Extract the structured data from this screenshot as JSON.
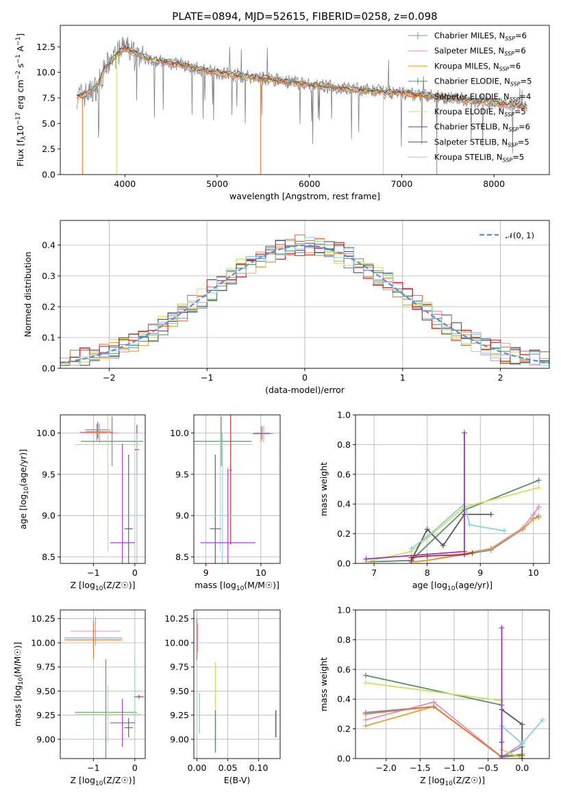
{
  "figure": {
    "title": "PLATE=0894, MJD=52615, FIBERID=0258, z=0.098"
  },
  "models": [
    {
      "name": "Chabrier MILES, N",
      "n": "6",
      "color": "#6f8fc9"
    },
    {
      "name": "Salpeter MILES, N",
      "n": "6",
      "color": "#e78ac3"
    },
    {
      "name": "Kroupa MILES, N",
      "n": "6",
      "color": "#e0a030"
    },
    {
      "name": "Chabrier ELODIE, N",
      "n": "5",
      "color": "#5b8f6b"
    },
    {
      "name": "Salpeter ELODIE, N",
      "n": "4",
      "color": "#e8722a"
    },
    {
      "name": "Kroupa ELODIE, N",
      "n": "5",
      "color": "#cbe25a"
    },
    {
      "name": "Chabrier STELIB, N",
      "n": "6",
      "color": "#555555"
    },
    {
      "name": "Salpeter STELIB, N",
      "n": "5",
      "color": "#c42121"
    },
    {
      "name": "Kroupa STELIB, N",
      "n": "5",
      "color": "#86d2d8"
    }
  ],
  "chart_data": [
    {
      "type": "line",
      "id": "spectrum",
      "title": "PLATE=0894, MJD=52615, FIBERID=0258, z=0.098",
      "xlabel": "wavelength [Angstrom, rest frame]",
      "ylabel_parts": [
        "Flux [f",
        "λ",
        "10",
        "−17",
        " erg cm",
        "−2",
        " s",
        "−1",
        " A",
        "−1",
        "]"
      ],
      "xlim": [
        3300,
        8600
      ],
      "ylim": [
        0,
        14.6
      ],
      "xticks": [
        4000,
        5000,
        6000,
        7000,
        8000
      ],
      "yticks": [
        0.0,
        2.5,
        5.0,
        7.5,
        10.0,
        12.5
      ],
      "ytick_labels": [
        "0.0",
        "2.5",
        "5.0",
        "7.5",
        "10.0",
        "12.5"
      ],
      "data_color": "#808080",
      "continuum_x": [
        3480,
        3600,
        3700,
        3800,
        3900,
        4000,
        4100,
        4200,
        4400,
        4600,
        4800,
        5000,
        5300,
        5600,
        6000,
        6400,
        6800,
        7200,
        7600,
        8000,
        8360
      ],
      "continuum_y": [
        7.7,
        7.9,
        8.6,
        10.6,
        11.6,
        12.4,
        12.0,
        11.5,
        11.0,
        10.8,
        10.3,
        10.0,
        9.6,
        9.3,
        8.8,
        8.4,
        8.1,
        7.8,
        7.4,
        7.0,
        6.6
      ],
      "legend_placement": "upper-right",
      "grid": false
    },
    {
      "type": "line",
      "id": "residual_hist",
      "xlabel": "(data-model)/error",
      "ylabel": "Normed distribution",
      "xlim": [
        -2.5,
        2.5
      ],
      "ylim": [
        0,
        0.48
      ],
      "xticks": [
        -2,
        -1,
        0,
        1,
        2
      ],
      "xtick_labels": [
        "−2",
        "−1",
        "0",
        "1",
        "2"
      ],
      "yticks": [
        0.0,
        0.1,
        0.2,
        0.3,
        0.4
      ],
      "ytick_labels": [
        "0.0",
        "0.1",
        "0.2",
        "0.3",
        "0.4"
      ],
      "normal_label": "𝒩(0, 1)",
      "normal_color": "#5b8bd6",
      "legend_placement": "upper-right",
      "grid": true
    },
    {
      "type": "scatter",
      "id": "age_vs_Z",
      "xlabel": "Z [log10(Z/Z☉)]",
      "ylabel": "age  [log10(age/yr)]",
      "xlim": [
        -1.8,
        0.25
      ],
      "ylim": [
        8.42,
        10.22
      ],
      "xticks": [
        -1,
        0
      ],
      "xtick_labels": [
        "−1",
        "0"
      ],
      "yticks": [
        8.5,
        9.0,
        9.5,
        10.0
      ],
      "ytick_labels": [
        "8.5",
        "9.0",
        "9.5",
        "10.0"
      ],
      "grid": true,
      "points": [
        {
          "c": 0,
          "x": -0.9,
          "y": 10.04,
          "xe": 0.3,
          "ye": 0.1
        },
        {
          "c": 1,
          "x": -0.85,
          "y": 10.0,
          "xe": 0.45,
          "ye": 0.12
        },
        {
          "c": 2,
          "x": -0.88,
          "y": 10.02,
          "xe": 0.3,
          "ye": 0.1
        },
        {
          "c": 3,
          "x": -0.55,
          "y": 9.9,
          "xe": 0.75,
          "ye": 0.3
        },
        {
          "c": 4,
          "x": -0.92,
          "y": 10.01,
          "xe": 0.4,
          "ye": 0.1
        },
        {
          "c": 5,
          "x": -0.65,
          "y": 9.86,
          "xe": 0.8,
          "ye": 1.3
        },
        {
          "c": 6,
          "x": -0.15,
          "y": 8.84,
          "xe": 0.1,
          "ye": 0.9
        },
        {
          "c": 7,
          "x": 0.05,
          "y": 9.8,
          "xe": 0.05,
          "ye": 0.3
        },
        {
          "c": 8,
          "x": 0.05,
          "y": 9.0,
          "xe": 0.2,
          "ye": 1.0
        },
        {
          "c": 9,
          "x": -0.3,
          "y": 8.67,
          "xe": 0.3,
          "ye": 1.2
        }
      ]
    },
    {
      "type": "scatter",
      "id": "age_vs_mass",
      "xlabel": "mass [log10(M/M☉)]",
      "xlim": [
        8.78,
        10.35
      ],
      "ylim": [
        8.42,
        10.22
      ],
      "xticks": [
        9,
        10
      ],
      "xtick_labels": [
        "9",
        "10"
      ],
      "yticks": [
        8.5,
        9.0,
        9.5,
        10.0
      ],
      "ytick_labels": [
        "8.5",
        "9.0",
        "9.5",
        "10.0"
      ],
      "grid": true,
      "points": [
        {
          "c": 0,
          "x": 10.02,
          "y": 10.0,
          "xe": 0.15,
          "ye": 0.08
        },
        {
          "c": 1,
          "x": 10.05,
          "y": 9.99,
          "xe": 0.18,
          "ye": 0.1
        },
        {
          "c": 4,
          "x": 10.0,
          "y": 9.99,
          "xe": 0.15,
          "ye": 0.1
        },
        {
          "c": 3,
          "x": 9.28,
          "y": 9.9,
          "xe": 0.55,
          "ye": 0.3
        },
        {
          "c": 5,
          "x": 9.26,
          "y": 9.86,
          "xe": 0.6,
          "ye": 1.3
        },
        {
          "c": 6,
          "x": 9.17,
          "y": 8.84,
          "xe": 0.1,
          "ye": 0.9
        },
        {
          "c": 7,
          "x": 9.45,
          "y": 9.55,
          "xe": 0.02,
          "ye": 0.9
        },
        {
          "c": 8,
          "x": 9.3,
          "y": 9.0,
          "xe": 0.3,
          "ye": 1.0
        },
        {
          "c": 9,
          "x": 9.4,
          "y": 8.67,
          "xe": 0.5,
          "ye": 0.9
        }
      ]
    },
    {
      "type": "line",
      "id": "massweight_vs_age",
      "xlabel": "age  [log10(age/yr)]",
      "ylabel": "mass weight",
      "xlim": [
        6.65,
        10.3
      ],
      "ylim": [
        0,
        1.0
      ],
      "xticks": [
        7,
        8,
        9,
        10
      ],
      "xtick_labels": [
        "7",
        "8",
        "9",
        "10"
      ],
      "yticks": [
        0.0,
        0.2,
        0.4,
        0.6,
        0.8,
        1.0
      ],
      "ytick_labels": [
        "0.0",
        "0.2",
        "0.4",
        "0.6",
        "0.8",
        "1.0"
      ],
      "grid": true,
      "series": [
        {
          "c": 0,
          "x": [
            7.7,
            8.0,
            9.2,
            9.8,
            10.0,
            10.1
          ],
          "y": [
            0.01,
            0.02,
            0.09,
            0.23,
            0.3,
            0.32
          ]
        },
        {
          "c": 1,
          "x": [
            7.7,
            8.0,
            9.2,
            9.8,
            10.0,
            10.1
          ],
          "y": [
            0.01,
            0.02,
            0.1,
            0.24,
            0.33,
            0.38
          ]
        },
        {
          "c": 2,
          "x": [
            7.7,
            8.0,
            9.2,
            9.8,
            10.0,
            10.1
          ],
          "y": [
            0.01,
            0.02,
            0.1,
            0.23,
            0.3,
            0.31
          ]
        },
        {
          "c": 3,
          "x": [
            6.85,
            7.7,
            8.7,
            10.1
          ],
          "y": [
            0.01,
            0.02,
            0.36,
            0.56
          ]
        },
        {
          "c": 5,
          "x": [
            6.85,
            7.7,
            8.7,
            10.1
          ],
          "y": [
            0.01,
            0.08,
            0.38,
            0.51
          ]
        },
        {
          "c": 6,
          "x": [
            7.7,
            8.0,
            8.3,
            8.7,
            9.2
          ],
          "y": [
            0.02,
            0.23,
            0.12,
            0.33,
            0.33
          ]
        },
        {
          "c": 7,
          "x": [
            7.7,
            8.0,
            8.7,
            8.85
          ],
          "y": [
            0.04,
            0.05,
            0.06,
            0.07
          ]
        },
        {
          "c": 8,
          "x": [
            7.7,
            8.0,
            8.7,
            8.8,
            9.45
          ],
          "y": [
            0.1,
            0.18,
            0.4,
            0.26,
            0.22
          ]
        },
        {
          "c": 9,
          "x": [
            6.85,
            8.7,
            8.7
          ],
          "y": [
            0.03,
            0.08,
            0.88
          ]
        }
      ]
    },
    {
      "type": "scatter",
      "id": "mass_vs_Z",
      "xlabel": "Z [log10(Z/Z☉)]",
      "ylabel": "mass [log10(M/M☉)]",
      "xlim": [
        -1.8,
        0.25
      ],
      "ylim": [
        8.8,
        10.34
      ],
      "xticks": [
        -1,
        0
      ],
      "xtick_labels": [
        "−1",
        "0"
      ],
      "yticks": [
        9.0,
        9.25,
        9.5,
        9.75,
        10.0,
        10.25
      ],
      "ytick_labels": [
        "9.00",
        "9.25",
        "9.50",
        "9.75",
        "10.00",
        "10.25"
      ],
      "grid": true,
      "points": [
        {
          "c": 0,
          "x": -1.0,
          "y": 10.05,
          "xe": 0.7,
          "ye": 0.1
        },
        {
          "c": 1,
          "x": -0.95,
          "y": 10.12,
          "xe": 0.6,
          "ye": 0.15
        },
        {
          "c": 4,
          "x": -1.0,
          "y": 10.03,
          "xe": 0.7,
          "ye": 0.2
        },
        {
          "c": 3,
          "x": -0.7,
          "y": 9.28,
          "xe": 0.75,
          "ye": 0.55
        },
        {
          "c": 5,
          "x": -0.65,
          "y": 9.26,
          "xe": 0.8,
          "ye": 0.3
        },
        {
          "c": 6,
          "x": -0.15,
          "y": 9.12,
          "xe": 0.1,
          "ye": 0.1
        },
        {
          "c": 7,
          "x": 0.1,
          "y": 9.44,
          "xe": 0.12,
          "ye": 0.02
        },
        {
          "c": 8,
          "x": 0.0,
          "y": 9.5,
          "xe": 0.1,
          "ye": 0.35
        },
        {
          "c": 9,
          "x": -0.3,
          "y": 9.17,
          "xe": 0.3,
          "ye": 0.25
        }
      ]
    },
    {
      "type": "scatter",
      "id": "mass_vs_EBV",
      "xlabel": "E(B-V)",
      "xlim": [
        -0.005,
        0.135
      ],
      "ylim": [
        8.8,
        10.34
      ],
      "xticks": [
        0.0,
        0.05,
        0.1
      ],
      "xtick_labels": [
        "0.00",
        "0.05",
        "0.10"
      ],
      "yticks": [
        9.0,
        9.25,
        9.5,
        9.75,
        10.0,
        10.25
      ],
      "ytick_labels": [
        "9.00",
        "9.25",
        "9.50",
        "9.75",
        "10.00",
        "10.25"
      ],
      "grid": true,
      "segments": [
        {
          "c": 4,
          "x": 0.0,
          "y0": 9.82,
          "y1": 10.25
        },
        {
          "c": 1,
          "x": 0.001,
          "y0": 9.9,
          "y1": 10.2
        },
        {
          "c": 8,
          "x": 0.004,
          "y0": 9.06,
          "y1": 9.48
        },
        {
          "c": 5,
          "x": 0.03,
          "y0": 8.94,
          "y1": 9.8
        },
        {
          "c": 3,
          "x": 0.03,
          "y0": 8.86,
          "y1": 9.3
        },
        {
          "c": 6,
          "x": 0.128,
          "y0": 9.02,
          "y1": 9.3
        }
      ]
    },
    {
      "type": "line",
      "id": "massweight_vs_Z",
      "xlabel": "Z [log10(Z/Z☉)]",
      "ylabel": "mass weight",
      "xlim": [
        -2.45,
        0.4
      ],
      "ylim": [
        0,
        1.0
      ],
      "xticks": [
        -2.0,
        -1.5,
        -1.0,
        -0.5,
        0.0
      ],
      "xtick_labels": [
        "−2.0",
        "−1.5",
        "−1.0",
        "−0.5",
        "0.0"
      ],
      "yticks": [
        0.0,
        0.2,
        0.4,
        0.6,
        0.8,
        1.0
      ],
      "ytick_labels": [
        "0.0",
        "0.2",
        "0.4",
        "0.6",
        "0.8",
        "1.0"
      ],
      "grid": true,
      "series": [
        {
          "c": 0,
          "x": [
            -2.3,
            -1.3,
            -0.3,
            0.0
          ],
          "y": [
            0.31,
            0.35,
            0.01,
            0.08
          ]
        },
        {
          "c": 1,
          "x": [
            -2.3,
            -1.3,
            -0.3,
            0.0
          ],
          "y": [
            0.26,
            0.38,
            0.01,
            0.1
          ]
        },
        {
          "c": 2,
          "x": [
            -2.3,
            -1.3,
            -0.3,
            0.0
          ],
          "y": [
            0.22,
            0.35,
            0.01,
            0.02
          ]
        },
        {
          "c": 4,
          "x": [
            -2.3,
            -1.3,
            -0.3,
            0.0
          ],
          "y": [
            0.3,
            0.35,
            0.01,
            0.03
          ]
        },
        {
          "c": 3,
          "x": [
            -2.3,
            -0.3,
            -0.3,
            0.0
          ],
          "y": [
            0.56,
            0.36,
            0.02,
            0.02
          ]
        },
        {
          "c": 5,
          "x": [
            -2.3,
            -0.3,
            -0.3,
            0.0
          ],
          "y": [
            0.51,
            0.39,
            0.06,
            0.0
          ]
        },
        {
          "c": 6,
          "x": [
            -0.3,
            -0.3,
            0.0,
            0.0
          ],
          "y": [
            0.11,
            0.33,
            0.23,
            0.0
          ]
        },
        {
          "c": 8,
          "x": [
            -0.3,
            -0.3,
            0.0,
            0.3
          ],
          "y": [
            0.4,
            0.22,
            0.1,
            0.26
          ]
        },
        {
          "c": 9,
          "x": [
            -0.3,
            -0.3
          ],
          "y": [
            0.01,
            0.88
          ]
        }
      ]
    }
  ]
}
